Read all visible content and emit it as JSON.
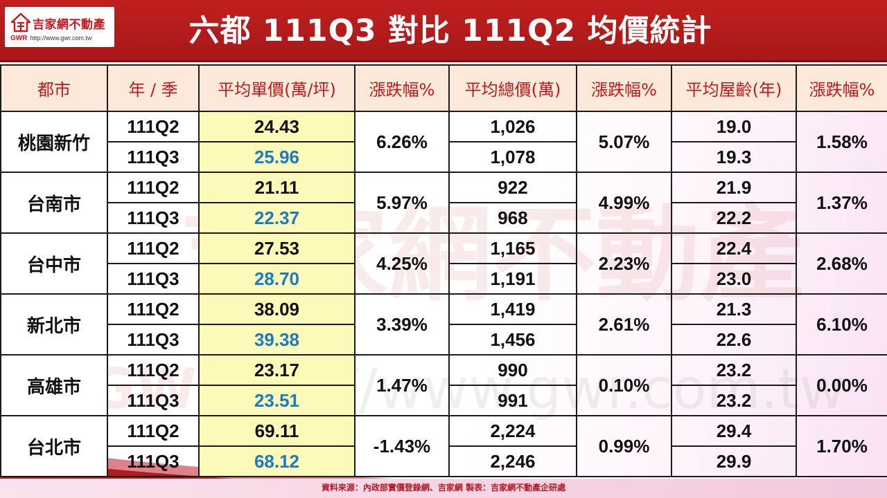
{
  "header": {
    "title": "六都  111Q3 對比 111Q2 均價統計",
    "logo_name": "吉家網不動產",
    "logo_abbr": "GWR",
    "logo_url": "http://www.gwr.com.tw"
  },
  "watermark": {
    "brand": "吉家網不動產",
    "abbr": "GWR",
    "url": "http://www.gwr.com.tw"
  },
  "colors": {
    "header_red": "#b31b1e",
    "q3_blue": "#1e7abf",
    "negative_red": "#e0131a",
    "header_row_bg": "#fde9da",
    "price_bg": "#fdf9b8"
  },
  "table": {
    "headers": [
      "都市",
      "年 / 季",
      "平均單價(萬/坪)",
      "漲跌幅%",
      "平均總價(萬)",
      "漲跌幅%",
      "平均屋齡(年)",
      "漲跌幅%"
    ],
    "rows": [
      {
        "city": "桃園新竹",
        "q_prev": "111Q2",
        "q_cur": "111Q3",
        "unit_prev": "24.43",
        "unit_cur": "25.96",
        "unit_change": "6.26%",
        "total_prev": "1,026",
        "total_cur": "1,078",
        "total_change": "5.07%",
        "age_prev": "19.0",
        "age_cur": "19.3",
        "age_change": "1.58%"
      },
      {
        "city": "台南市",
        "q_prev": "111Q2",
        "q_cur": "111Q3",
        "unit_prev": "21.11",
        "unit_cur": "22.37",
        "unit_change": "5.97%",
        "total_prev": "922",
        "total_cur": "968",
        "total_change": "4.99%",
        "age_prev": "21.9",
        "age_cur": "22.2",
        "age_change": "1.37%"
      },
      {
        "city": "台中市",
        "q_prev": "111Q2",
        "q_cur": "111Q3",
        "unit_prev": "27.53",
        "unit_cur": "28.70",
        "unit_change": "4.25%",
        "total_prev": "1,165",
        "total_cur": "1,191",
        "total_change": "2.23%",
        "age_prev": "22.4",
        "age_cur": "23.0",
        "age_change": "2.68%"
      },
      {
        "city": "新北市",
        "q_prev": "111Q2",
        "q_cur": "111Q3",
        "unit_prev": "38.09",
        "unit_cur": "39.38",
        "unit_change": "3.39%",
        "total_prev": "1,419",
        "total_cur": "1,456",
        "total_change": "2.61%",
        "age_prev": "21.3",
        "age_cur": "22.6",
        "age_change": "6.10%"
      },
      {
        "city": "高雄市",
        "q_prev": "111Q2",
        "q_cur": "111Q3",
        "unit_prev": "23.17",
        "unit_cur": "23.51",
        "unit_change": "1.47%",
        "total_prev": "990",
        "total_cur": "991",
        "total_change": "0.10%",
        "age_prev": "23.2",
        "age_cur": "23.2",
        "age_change": "0.00%"
      },
      {
        "city": "台北市",
        "q_prev": "111Q2",
        "q_cur": "111Q3",
        "unit_prev": "69.11",
        "unit_cur": "68.12",
        "unit_change": "-1.43%",
        "total_prev": "2,224",
        "total_cur": "2,246",
        "total_change": "0.99%",
        "age_prev": "29.4",
        "age_cur": "29.9",
        "age_change": "1.70%"
      }
    ]
  },
  "footer": {
    "text": "資料來源：內政部實價登錄網、吉家網  製表：吉家網不動產企研處"
  }
}
